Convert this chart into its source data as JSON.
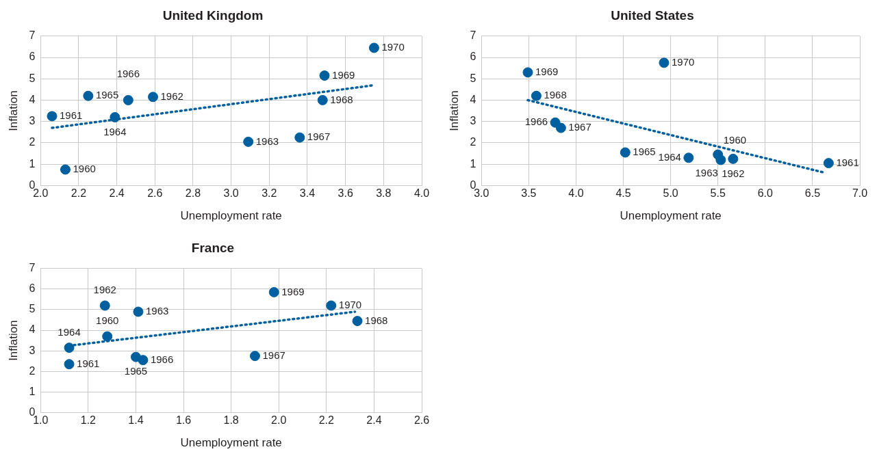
{
  "chart_data": [
    {
      "type": "scatter",
      "title": "United Kingdom",
      "xlabel": "Unemployment rate",
      "ylabel": "Inflation",
      "xlim": [
        2.0,
        4.0
      ],
      "xticks": [
        {
          "value": 2,
          "label": "2.0"
        },
        {
          "value": 2.2,
          "label": "2.2"
        },
        {
          "value": 2.4,
          "label": "2.4"
        },
        {
          "value": 2.6,
          "label": "2.6"
        },
        {
          "value": 2.8,
          "label": "2.8"
        },
        {
          "value": 3,
          "label": "3.0"
        },
        {
          "value": 3.2,
          "label": "3.2"
        },
        {
          "value": 3.4,
          "label": "3.4"
        },
        {
          "value": 3.6,
          "label": "3.6"
        },
        {
          "value": 3.8,
          "label": "3.8"
        },
        {
          "value": 4,
          "label": "4.0"
        }
      ],
      "ylim": [
        0,
        7
      ],
      "yticks": [
        0,
        1,
        2,
        3,
        4,
        5,
        6,
        7
      ],
      "grid": true,
      "marker": "circle",
      "series": [
        {
          "color": "#005f9e",
          "x": [
            2.13,
            2.06,
            2.59,
            3.09,
            2.39,
            2.25,
            2.46,
            3.36,
            3.48,
            3.49,
            3.75
          ],
          "values": [
            0.75,
            3.25,
            4.15,
            2.05,
            3.2,
            4.2,
            4.0,
            2.25,
            4.0,
            5.15,
            6.45
          ]
        },
        {
          "type": "line",
          "color": "#005f9e",
          "line_style": "dotted",
          "marker": "none",
          "x": [
            2.06,
            3.75
          ],
          "values": [
            2.7,
            4.7
          ]
        }
      ],
      "annotations": [
        {
          "text": "1960",
          "x": 2.13,
          "y": 0.75
        },
        {
          "text": "1961",
          "x": 2.06,
          "y": 3.25
        },
        {
          "text": "1962",
          "x": 2.59,
          "y": 4.15
        },
        {
          "text": "1963",
          "x": 3.09,
          "y": 2.05
        },
        {
          "text": "1964",
          "x": 2.39,
          "y": 3.2
        },
        {
          "text": "1965",
          "x": 2.25,
          "y": 4.2
        },
        {
          "text": "1966",
          "x": 2.46,
          "y": 4.0
        },
        {
          "text": "1967",
          "x": 3.36,
          "y": 2.25
        },
        {
          "text": "1968",
          "x": 3.48,
          "y": 4.0
        },
        {
          "text": "1969",
          "x": 3.49,
          "y": 5.15
        },
        {
          "text": "1970",
          "x": 3.75,
          "y": 6.45
        }
      ]
    },
    {
      "type": "scatter",
      "title": "United States",
      "xlabel": "Unemployment rate",
      "ylabel": "Inflation",
      "xlim": [
        3.0,
        7.0
      ],
      "xticks": [
        {
          "value": 3,
          "label": "3.0"
        },
        {
          "value": 3.5,
          "label": "3.5"
        },
        {
          "value": 4,
          "label": "4.0"
        },
        {
          "value": 4.5,
          "label": "4.5"
        },
        {
          "value": 5,
          "label": "5.0"
        },
        {
          "value": 5.5,
          "label": "5.5"
        },
        {
          "value": 6,
          "label": "6.0"
        },
        {
          "value": 6.5,
          "label": "6.5"
        },
        {
          "value": 7,
          "label": "7.0"
        }
      ],
      "ylim": [
        0,
        7
      ],
      "yticks": [
        0,
        1,
        2,
        3,
        4,
        5,
        6,
        7
      ],
      "grid": true,
      "marker": "circle",
      "series": [
        {
          "color": "#005f9e",
          "x": [
            5.5,
            6.67,
            5.66,
            5.53,
            5.19,
            4.52,
            3.78,
            3.84,
            3.58,
            3.49,
            4.93
          ],
          "values": [
            1.45,
            1.05,
            1.25,
            1.2,
            1.3,
            1.55,
            2.95,
            2.7,
            4.2,
            5.3,
            5.75
          ]
        },
        {
          "type": "line",
          "color": "#005f9e",
          "line_style": "dotted",
          "marker": "none",
          "x": [
            3.49,
            6.63
          ],
          "values": [
            4.0,
            0.6
          ]
        }
      ],
      "annotations": [
        {
          "text": "1960",
          "x": 5.5,
          "y": 1.45
        },
        {
          "text": "1961",
          "x": 6.67,
          "y": 1.05
        },
        {
          "text": "1962",
          "x": 5.66,
          "y": 1.25
        },
        {
          "text": "1963",
          "x": 5.53,
          "y": 1.2
        },
        {
          "text": "1964",
          "x": 5.19,
          "y": 1.3
        },
        {
          "text": "1965",
          "x": 4.52,
          "y": 1.55
        },
        {
          "text": "1966",
          "x": 3.78,
          "y": 2.95
        },
        {
          "text": "1967",
          "x": 3.84,
          "y": 2.7
        },
        {
          "text": "1968",
          "x": 3.58,
          "y": 4.2
        },
        {
          "text": "1969",
          "x": 3.49,
          "y": 5.3
        },
        {
          "text": "1970",
          "x": 4.93,
          "y": 5.75
        }
      ]
    },
    {
      "type": "scatter",
      "title": "France",
      "xlabel": "Unemployment rate",
      "ylabel": "Inflation",
      "xlim": [
        1.0,
        2.6
      ],
      "xticks": [
        {
          "value": 1,
          "label": "1.0"
        },
        {
          "value": 1.2,
          "label": "1.2"
        },
        {
          "value": 1.4,
          "label": "1.4"
        },
        {
          "value": 1.6,
          "label": "1.6"
        },
        {
          "value": 1.8,
          "label": "1.8"
        },
        {
          "value": 2,
          "label": "2.0"
        },
        {
          "value": 2.2,
          "label": "2.2"
        },
        {
          "value": 2.4,
          "label": "2.4"
        },
        {
          "value": 2.6,
          "label": "2.6"
        }
      ],
      "ylim": [
        0,
        7
      ],
      "yticks": [
        0,
        1,
        2,
        3,
        4,
        5,
        6,
        7
      ],
      "grid": true,
      "marker": "circle",
      "series": [
        {
          "color": "#005f9e",
          "x": [
            1.28,
            1.12,
            1.27,
            1.41,
            1.12,
            1.4,
            1.43,
            1.9,
            2.33,
            1.98,
            2.22
          ],
          "values": [
            3.7,
            2.35,
            5.2,
            4.9,
            3.15,
            2.7,
            2.55,
            2.75,
            4.45,
            5.85,
            5.2
          ]
        },
        {
          "type": "line",
          "color": "#005f9e",
          "line_style": "dotted",
          "marker": "none",
          "x": [
            1.12,
            2.32
          ],
          "values": [
            3.25,
            4.9
          ]
        }
      ],
      "annotations": [
        {
          "text": "1960",
          "x": 1.28,
          "y": 3.7
        },
        {
          "text": "1961",
          "x": 1.12,
          "y": 2.35
        },
        {
          "text": "1962",
          "x": 1.27,
          "y": 5.2
        },
        {
          "text": "1963",
          "x": 1.41,
          "y": 4.9
        },
        {
          "text": "1964",
          "x": 1.12,
          "y": 3.15
        },
        {
          "text": "1965",
          "x": 1.4,
          "y": 2.7
        },
        {
          "text": "1966",
          "x": 1.43,
          "y": 2.55
        },
        {
          "text": "1967",
          "x": 1.9,
          "y": 2.75
        },
        {
          "text": "1968",
          "x": 2.33,
          "y": 4.45
        },
        {
          "text": "1969",
          "x": 1.98,
          "y": 5.85
        },
        {
          "text": "1970",
          "x": 2.22,
          "y": 5.2
        }
      ]
    }
  ]
}
